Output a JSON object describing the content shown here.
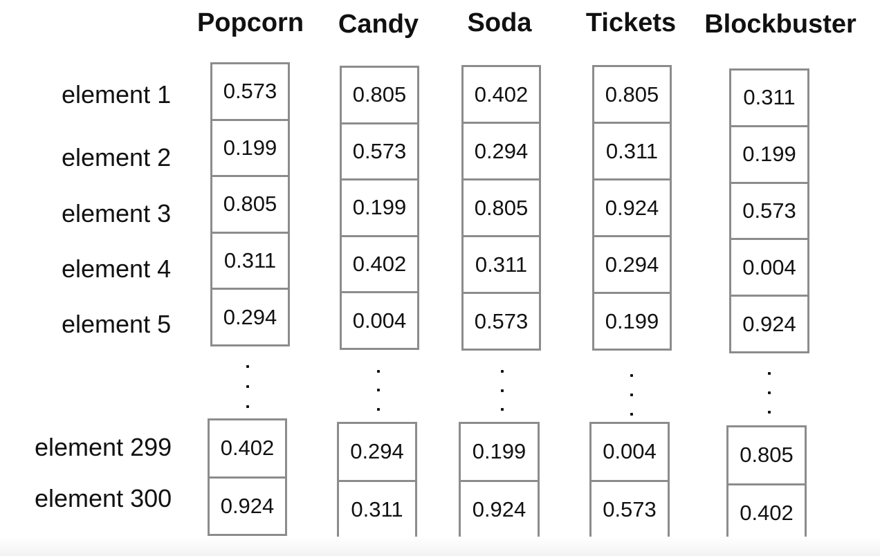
{
  "columns": [
    {
      "header": "Popcorn",
      "top": [
        "0.573",
        "0.199",
        "0.805",
        "0.311",
        "0.294"
      ],
      "bottom": [
        "0.402",
        "0.924"
      ]
    },
    {
      "header": "Candy",
      "top": [
        "0.805",
        "0.573",
        "0.199",
        "0.402",
        "0.004"
      ],
      "bottom": [
        "0.294",
        "0.311"
      ]
    },
    {
      "header": "Soda",
      "top": [
        "0.402",
        "0.294",
        "0.805",
        "0.311",
        "0.573"
      ],
      "bottom": [
        "0.199",
        "0.924"
      ]
    },
    {
      "header": "Tickets",
      "top": [
        "0.805",
        "0.311",
        "0.924",
        "0.294",
        "0.199"
      ],
      "bottom": [
        "0.004",
        "0.573"
      ]
    },
    {
      "header": "Blockbuster",
      "top": [
        "0.311",
        "0.199",
        "0.573",
        "0.004",
        "0.924"
      ],
      "bottom": [
        "0.805",
        "0.402"
      ]
    }
  ],
  "row_labels": {
    "top": [
      "element 1",
      "element 2",
      "element 3",
      "element 4",
      "element 5"
    ],
    "bottom": [
      "element 299",
      "element 300"
    ]
  }
}
